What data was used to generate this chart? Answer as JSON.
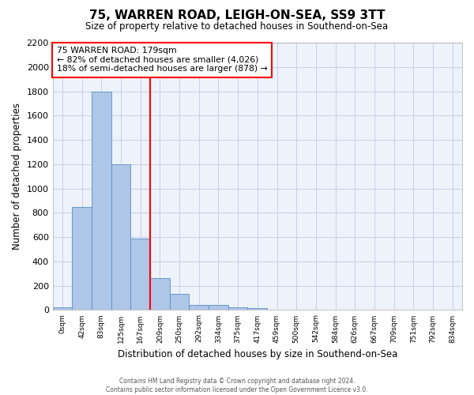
{
  "title": "75, WARREN ROAD, LEIGH-ON-SEA, SS9 3TT",
  "subtitle": "Size of property relative to detached houses in Southend-on-Sea",
  "xlabel": "Distribution of detached houses by size in Southend-on-Sea",
  "ylabel": "Number of detached properties",
  "bin_labels": [
    "0sqm",
    "42sqm",
    "83sqm",
    "125sqm",
    "167sqm",
    "209sqm",
    "250sqm",
    "292sqm",
    "334sqm",
    "375sqm",
    "417sqm",
    "459sqm",
    "500sqm",
    "542sqm",
    "584sqm",
    "626sqm",
    "667sqm",
    "709sqm",
    "751sqm",
    "792sqm",
    "834sqm"
  ],
  "bar_heights": [
    25,
    850,
    1800,
    1200,
    590,
    260,
    130,
    45,
    45,
    25,
    15,
    0,
    0,
    0,
    0,
    0,
    0,
    0,
    0,
    0,
    0
  ],
  "bar_color": "#aec6e8",
  "bar_edge_color": "#5590c0",
  "red_line_x": 4.5,
  "annotation_text_line1": "75 WARREN ROAD: 179sqm",
  "annotation_text_line2": "← 82% of detached houses are smaller (4,026)",
  "annotation_text_line3": "18% of semi-detached houses are larger (878) →",
  "ylim": [
    0,
    2200
  ],
  "yticks": [
    0,
    200,
    400,
    600,
    800,
    1000,
    1200,
    1400,
    1600,
    1800,
    2000,
    2200
  ],
  "footer_line1": "Contains HM Land Registry data © Crown copyright and database right 2024.",
  "footer_line2": "Contains public sector information licensed under the Open Government Licence v3.0.",
  "bg_color": "#eef2fb",
  "grid_color": "#c8cee6"
}
